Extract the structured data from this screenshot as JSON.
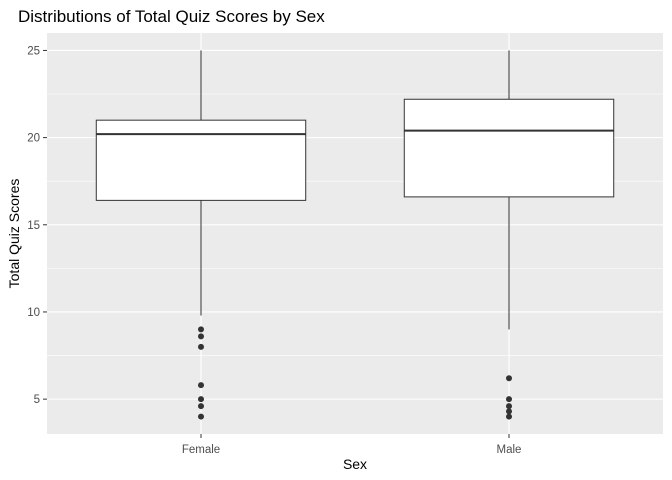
{
  "chart_data": {
    "type": "boxplot",
    "title": "Distributions of Total Quiz Scores by Sex",
    "xlabel": "Sex",
    "ylabel": "Total Quiz Scores",
    "categories": [
      "Female",
      "Male"
    ],
    "ylim": [
      3,
      26
    ],
    "yticks": [
      5,
      10,
      15,
      20,
      25
    ],
    "grid": true,
    "boxes": [
      {
        "category": "Female",
        "whisker_low": 9.8,
        "q1": 16.4,
        "median": 20.2,
        "q3": 21.0,
        "whisker_high": 25,
        "outliers": [
          9.0,
          8.6,
          8.0,
          5.8,
          5.0,
          4.6,
          4.0
        ]
      },
      {
        "category": "Male",
        "whisker_low": 9.0,
        "q1": 16.6,
        "median": 20.4,
        "q3": 22.2,
        "whisker_high": 25,
        "outliers": [
          6.2,
          5.0,
          4.6,
          4.3,
          4.0
        ]
      }
    ],
    "colors": {
      "panel": "#ebebeb",
      "grid": "#ffffff",
      "box_fill": "#ffffff",
      "box_line": "#333333",
      "outlier": "#333333"
    }
  }
}
